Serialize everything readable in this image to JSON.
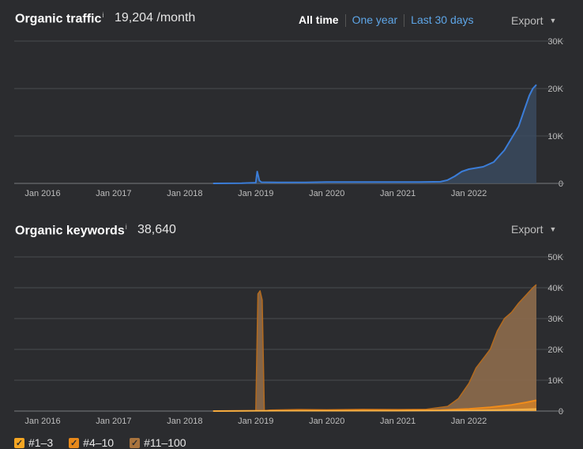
{
  "traffic": {
    "title": "Organic traffic",
    "info": "i",
    "value": "19,204 /month",
    "range_tabs": [
      "All time",
      "One year",
      "Last 30 days"
    ],
    "export_label": "Export",
    "caret": "▼"
  },
  "keywords": {
    "title": "Organic keywords",
    "info": "i",
    "value": "38,640",
    "export_label": "Export",
    "caret": "▼",
    "legend": [
      {
        "label": "#1–3",
        "color": "#f5a623",
        "check": "✓"
      },
      {
        "label": "#4–10",
        "color": "#e8891a",
        "check": "✓"
      },
      {
        "label": "#11–100",
        "color": "#a9743e",
        "check": "✓"
      }
    ]
  },
  "colors": {
    "traffic_line": "#3b7dd8",
    "traffic_area": "#3a4a5e",
    "kw_11_100_fill": "#8d6b4c",
    "kw_11_100_line": "#b36a1e",
    "kw_4_10": "#f08c1a",
    "kw_1_3": "#f7b54a"
  },
  "chart_data": [
    {
      "type": "area",
      "title": "Organic traffic",
      "x_tick_labels": [
        "Jan 2016",
        "Jan 2017",
        "Jan 2018",
        "Jan 2019",
        "Jan 2020",
        "Jan 2021",
        "Jan 2022"
      ],
      "y_tick_labels": [
        "0",
        "10K",
        "20K",
        "30K"
      ],
      "ylim": [
        0,
        30000
      ],
      "xlim": [
        2015.6,
        2022.95
      ],
      "grid": true,
      "series": [
        {
          "x": [
            2018.4,
            2018.8,
            2019.0,
            2019.02,
            2019.05,
            2019.08,
            2019.3,
            2019.7,
            2020.0,
            2020.5,
            2021.0,
            2021.3,
            2021.6,
            2021.7,
            2021.8,
            2021.9,
            2022.0,
            2022.2,
            2022.35,
            2022.5,
            2022.6,
            2022.7,
            2022.78,
            2022.85,
            2022.9,
            2022.95
          ],
          "y": [
            0,
            50,
            150,
            2500,
            600,
            250,
            200,
            220,
            300,
            280,
            280,
            300,
            350,
            700,
            1500,
            2500,
            3000,
            3500,
            4500,
            7000,
            9500,
            12000,
            15500,
            18500,
            20000,
            20800
          ]
        }
      ]
    },
    {
      "type": "area",
      "title": "Organic keywords",
      "x_tick_labels": [
        "Jan 2016",
        "Jan 2017",
        "Jan 2018",
        "Jan 2019",
        "Jan 2020",
        "Jan 2021",
        "Jan 2022"
      ],
      "y_tick_labels": [
        "0",
        "10K",
        "20K",
        "30K",
        "40K",
        "50K"
      ],
      "ylim": [
        0,
        50000
      ],
      "xlim": [
        2015.6,
        2022.95
      ],
      "grid": true,
      "legend": [
        "#1–3",
        "#4–10",
        "#11–100"
      ],
      "series": [
        {
          "name": "#11–100",
          "x": [
            2018.4,
            2018.9,
            2019.0,
            2019.03,
            2019.06,
            2019.09,
            2019.12,
            2019.2,
            2019.6,
            2020.0,
            2020.5,
            2021.0,
            2021.4,
            2021.7,
            2021.85,
            2022.0,
            2022.1,
            2022.2,
            2022.3,
            2022.4,
            2022.5,
            2022.6,
            2022.7,
            2022.8,
            2022.9,
            2022.95
          ],
          "y": [
            0,
            50,
            100,
            38000,
            39000,
            36000,
            100,
            300,
            500,
            400,
            600,
            500,
            600,
            1500,
            4000,
            9000,
            14000,
            17000,
            20000,
            26000,
            30000,
            32000,
            35000,
            37500,
            40000,
            41000
          ]
        },
        {
          "name": "#4–10",
          "x": [
            2018.4,
            2019.0,
            2020.0,
            2021.0,
            2021.6,
            2022.0,
            2022.3,
            2022.6,
            2022.8,
            2022.95
          ],
          "y": [
            0,
            100,
            200,
            200,
            300,
            700,
            1200,
            2000,
            2800,
            3500
          ]
        },
        {
          "name": "#1–3",
          "x": [
            2018.4,
            2019.0,
            2020.0,
            2021.0,
            2022.0,
            2022.5,
            2022.95
          ],
          "y": [
            0,
            50,
            80,
            100,
            200,
            400,
            700
          ]
        }
      ]
    }
  ]
}
